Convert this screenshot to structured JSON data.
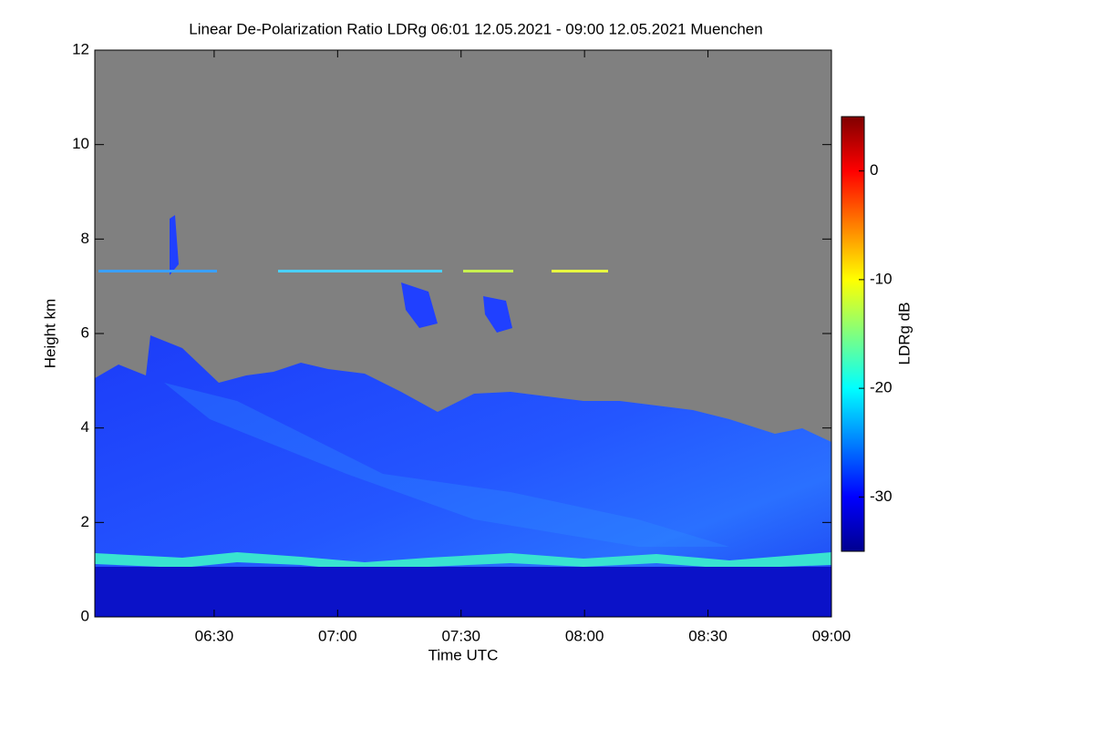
{
  "chart_data": {
    "type": "heatmap",
    "title": "Linear De-Polarization Ratio LDRg   06:01 12.05.2021 - 09:00 12.05.2021 Muenchen",
    "x_label": "Time UTC",
    "y_label": "Height km",
    "xlim": [
      361,
      540
    ],
    "xticks": [
      {
        "value": 390,
        "label": "06:30"
      },
      {
        "value": 420,
        "label": "07:00"
      },
      {
        "value": 450,
        "label": "07:30"
      },
      {
        "value": 480,
        "label": "08:00"
      },
      {
        "value": 510,
        "label": "08:30"
      },
      {
        "value": 540,
        "label": "09:00"
      }
    ],
    "ylim": [
      0,
      12
    ],
    "yticks": [
      0,
      2,
      4,
      6,
      8,
      10,
      12
    ],
    "colorbar": {
      "label": "LDRg dB",
      "clim": [
        -35,
        5
      ],
      "ticks": [
        0,
        -10,
        -20,
        -30
      ]
    }
  }
}
